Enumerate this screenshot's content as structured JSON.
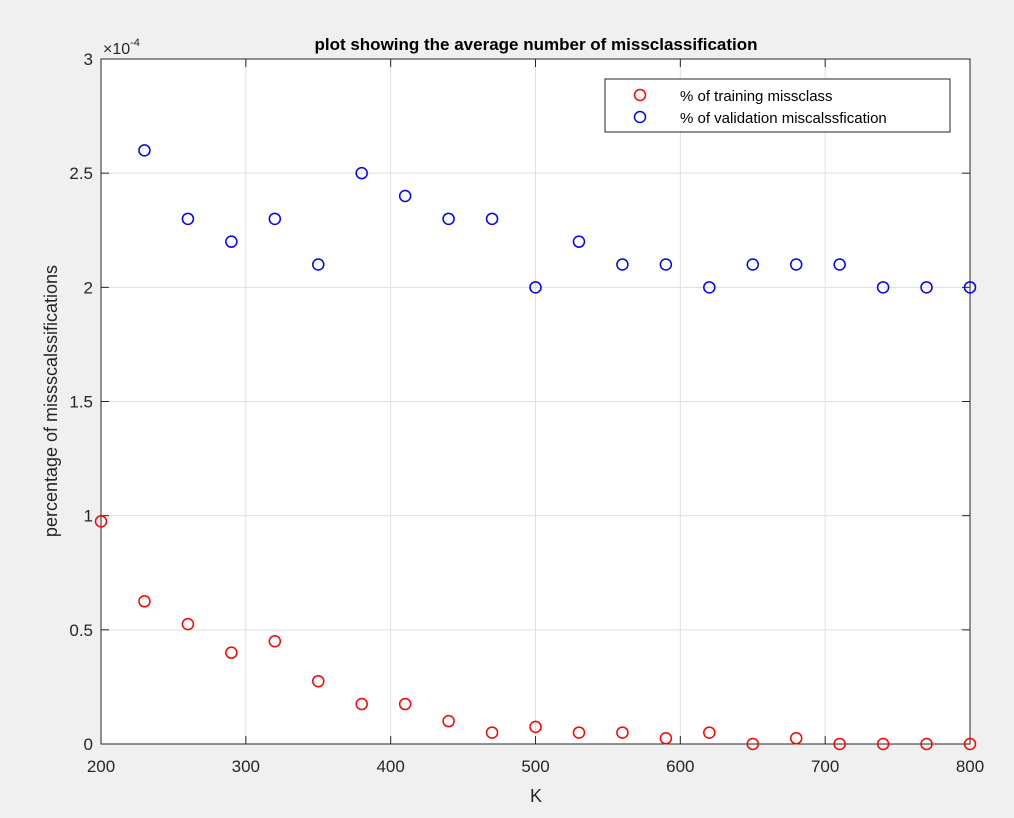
{
  "chart_data": {
    "type": "scatter",
    "title": "plot showing the average number of missclassification",
    "xlabel": "K",
    "ylabel": "percentage of missscalssifications",
    "y_exponent_label": "×10",
    "y_exponent_power": "-4",
    "xlim": [
      200,
      800
    ],
    "ylim": [
      0,
      3
    ],
    "x_ticks": [
      "200",
      "300",
      "400",
      "500",
      "600",
      "700",
      "800"
    ],
    "y_ticks": [
      "0",
      "0.5",
      "1",
      "1.5",
      "2",
      "2.5",
      "3"
    ],
    "grid": true,
    "legend_position": "top-right",
    "series": [
      {
        "name": "% of training missclass",
        "color": "#ff0000",
        "marker": "circle",
        "x": [
          200,
          230,
          260,
          290,
          320,
          350,
          380,
          410,
          440,
          470,
          500,
          530,
          560,
          590,
          620,
          650,
          680,
          710,
          740,
          770,
          800
        ],
        "y": [
          0.975,
          0.625,
          0.525,
          0.4,
          0.45,
          0.275,
          0.175,
          0.175,
          0.1,
          0.05,
          0.075,
          0.05,
          0.05,
          0.025,
          0.05,
          0,
          0.025,
          0,
          0,
          0,
          0
        ]
      },
      {
        "name": "% of validation miscalssfication",
        "color": "#0000ff",
        "marker": "circle",
        "x": [
          230,
          260,
          290,
          320,
          350,
          380,
          410,
          440,
          470,
          500,
          530,
          560,
          590,
          620,
          650,
          680,
          710,
          740,
          770,
          800
        ],
        "y": [
          2.6,
          2.3,
          2.2,
          2.3,
          2.1,
          2.5,
          2.4,
          2.3,
          2.3,
          2.0,
          2.2,
          2.1,
          2.1,
          2.0,
          2.1,
          2.1,
          2.1,
          2.0,
          2.0,
          2.0
        ]
      }
    ]
  }
}
